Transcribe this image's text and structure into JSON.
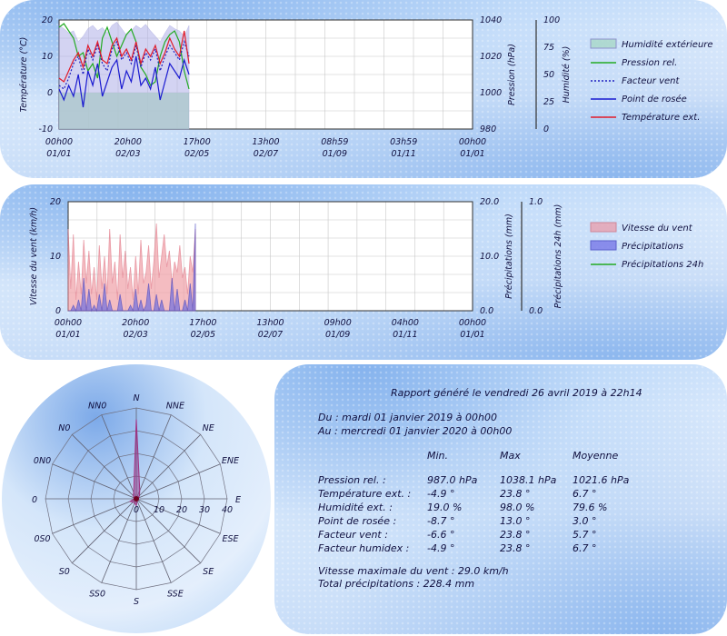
{
  "chart_data": [
    {
      "type": "line",
      "y_left": {
        "label": "Température (°C)",
        "range": [
          -10,
          20
        ],
        "ticks": [
          "20",
          "10",
          "0",
          "-10"
        ]
      },
      "y_right1": {
        "label": "Pression (hPa)",
        "range": [
          980,
          1040
        ],
        "ticks": [
          "1040",
          "1020",
          "1000",
          "980"
        ]
      },
      "y_right2": {
        "label": "Humidité (%)",
        "range": [
          0,
          100
        ],
        "ticks": [
          "100",
          "75",
          "50",
          "25",
          "0"
        ]
      },
      "x_ticks": [
        [
          "00h00",
          "01/01"
        ],
        [
          "20h00",
          "02/03"
        ],
        [
          "17h00",
          "02/05"
        ],
        [
          "13h00",
          "02/07"
        ],
        [
          "08h59",
          "01/09"
        ],
        [
          "03h59",
          "01/11"
        ],
        [
          "00h00",
          "01/01"
        ]
      ],
      "legend": [
        "Humidité extérieure",
        "Pression rel.",
        "Facteur vent",
        "Point de rosée",
        "Température ext."
      ],
      "colors": {
        "humidity": "#b0b0e8",
        "pressure": "#22aa22",
        "windchill": "#2020c0",
        "dewpoint": "#1a1ad0",
        "temp": "#e01a2a",
        "humidity_green": "#aee8b0"
      },
      "series": [
        {
          "name": "Humidité extérieure",
          "values": [
            95,
            92,
            88,
            90,
            80,
            85,
            92,
            95,
            90,
            93,
            88,
            95,
            98,
            92,
            86,
            90,
            95,
            92,
            96,
            90,
            85,
            80,
            88,
            95,
            92,
            90,
            85,
            95
          ]
        },
        {
          "name": "Pression rel.",
          "values": [
            1036,
            1038,
            1034,
            1030,
            1020,
            1022,
            1012,
            1016,
            1008,
            1030,
            1036,
            1028,
            1020,
            1026,
            1032,
            1035,
            1028,
            1014,
            1010,
            1004,
            1006,
            1020,
            1028,
            1032,
            1034,
            1028,
            1012,
            1002
          ]
        },
        {
          "name": "Facteur vent",
          "values": [
            2,
            1,
            4,
            8,
            10,
            5,
            12,
            9,
            13,
            8,
            6,
            12,
            14,
            9,
            11,
            8,
            13,
            7,
            11,
            9,
            12,
            6,
            10,
            13,
            11,
            9,
            14,
            10
          ]
        },
        {
          "name": "Point de rosée",
          "values": [
            1,
            -2,
            2,
            -1,
            5,
            -4,
            6,
            2,
            8,
            -1,
            3,
            7,
            9,
            1,
            6,
            3,
            10,
            2,
            4,
            1,
            7,
            -2,
            3,
            8,
            6,
            4,
            9,
            5
          ]
        },
        {
          "name": "Température ext.",
          "values": [
            4,
            3,
            6,
            9,
            11,
            7,
            13,
            10,
            14,
            9,
            8,
            13,
            15,
            10,
            12,
            9,
            14,
            8,
            12,
            10,
            13,
            8,
            11,
            15,
            12,
            10,
            17,
            8
          ]
        }
      ]
    },
    {
      "type": "area",
      "y_left": {
        "label": "Vitesse du vent (km/h)",
        "range": [
          0,
          20
        ],
        "ticks": [
          "20",
          "10",
          "0"
        ]
      },
      "y_right1": {
        "label": "Précipitations (mm)",
        "range": [
          0,
          20
        ],
        "ticks": [
          "20.0",
          "10.0",
          "0.0"
        ]
      },
      "y_right2": {
        "label": "Précipitations 24h (mm)",
        "range": [
          0,
          1
        ],
        "ticks": [
          "1.0",
          "0.0"
        ]
      },
      "x_ticks": [
        [
          "00h00",
          "01/01"
        ],
        [
          "20h00",
          "02/03"
        ],
        [
          "17h00",
          "02/05"
        ],
        [
          "13h00",
          "02/07"
        ],
        [
          "09h00",
          "01/09"
        ],
        [
          "04h00",
          "01/11"
        ],
        [
          "00h00",
          "01/01"
        ]
      ],
      "legend": [
        "Vitesse du vent",
        "Précipitations",
        "Précipitations 24h"
      ],
      "series": [
        {
          "name": "Vitesse du vent",
          "values": [
            15,
            4,
            14,
            2,
            9,
            3,
            13,
            5,
            11,
            3,
            8,
            2,
            12,
            4,
            10,
            3,
            15,
            5,
            9,
            2,
            14,
            6,
            11,
            4,
            8,
            2,
            10,
            3,
            13,
            5,
            7,
            12,
            4,
            9,
            16,
            6,
            10,
            14,
            8,
            11,
            5,
            9,
            7,
            12,
            6,
            8,
            3,
            10,
            7,
            15
          ]
        },
        {
          "name": "Précipitations",
          "values": [
            0,
            0,
            1,
            0,
            2,
            0,
            6,
            0,
            4,
            0,
            1,
            0,
            3,
            0,
            5,
            0,
            2,
            0,
            0,
            0,
            3,
            0,
            0,
            0,
            1,
            0,
            4,
            0,
            2,
            0,
            1,
            5,
            0,
            0,
            3,
            0,
            2,
            0,
            0,
            0,
            6,
            0,
            4,
            0,
            0,
            2,
            0,
            5,
            0,
            16
          ]
        },
        {
          "name": "Précipitations 24h",
          "values": []
        }
      ]
    },
    {
      "type": "radar",
      "directions": [
        "N",
        "NNE",
        "NE",
        "ENE",
        "E",
        "ESE",
        "SE",
        "SSE",
        "S",
        "SS0",
        "S0",
        "0S0",
        "0",
        "0N0",
        "N0",
        "NN0"
      ],
      "radial_ticks": [
        "0",
        "10",
        "20",
        "30",
        "40"
      ],
      "values": [
        35,
        4,
        2,
        1,
        1,
        1,
        1,
        1,
        3,
        2,
        2,
        3,
        1,
        1,
        2,
        3
      ]
    }
  ],
  "report": {
    "title": "Rapport généré le vendredi 26 avril 2019 à 22h14",
    "from": "Du : mardi 01 janvier 2019 à 00h00",
    "to": "Au : mercredi 01 janvier 2020 à 00h00",
    "headers": [
      "Min.",
      "Max",
      "Moyenne"
    ],
    "rows": [
      [
        "Pression rel. :",
        "987.0 hPa",
        "1038.1 hPa",
        "1021.6 hPa"
      ],
      [
        "Température ext. :",
        "-4.9 °",
        "23.8 °",
        "6.7 °"
      ],
      [
        "Humidité ext. :",
        "19.0 %",
        "98.0 %",
        "79.6 %"
      ],
      [
        "Point de rosée :",
        "-8.7 °",
        "13.0 °",
        "3.0 °"
      ],
      [
        "Facteur vent :",
        "-6.6 °",
        "23.8 °",
        "5.7 °"
      ],
      [
        "Facteur humidex :",
        "-4.9 °",
        "23.8 °",
        "6.7 °"
      ]
    ],
    "wind_max": "Vitesse maximale du vent : 29.0 km/h",
    "rain_total": "Total précipitations : 228.4 mm"
  }
}
